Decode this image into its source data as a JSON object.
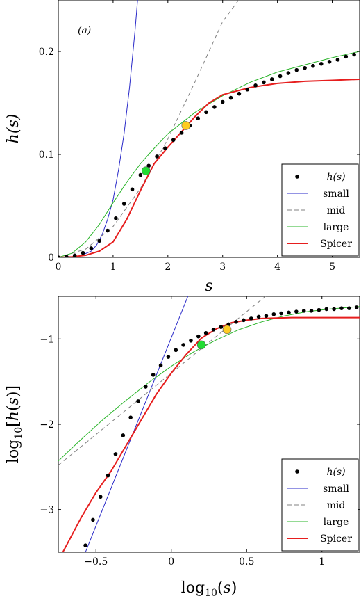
{
  "chart_data": [
    {
      "type": "line",
      "panel_label": "(a)",
      "xlabel": "s",
      "ylabel": "h(s)",
      "xlim": [
        0,
        5.5
      ],
      "ylim": [
        0,
        0.25
      ],
      "xticks": [
        0,
        1,
        2,
        3,
        4,
        5
      ],
      "xtick_labels": [
        "0",
        "1",
        "2",
        "3",
        "4",
        "5"
      ],
      "yticks": [
        0,
        0.1,
        0.2
      ],
      "ytick_labels": [
        "0",
        "0.1",
        "0.2"
      ],
      "grid": false,
      "legend_position": "bottom-right",
      "legend": [
        "h(s)",
        "small",
        "mid",
        "large",
        "Spicer"
      ],
      "series": [
        {
          "name": "h(s)",
          "style": "dots",
          "color": "#000000",
          "x": [
            0.0,
            0.15,
            0.3,
            0.45,
            0.6,
            0.75,
            0.9,
            1.05,
            1.2,
            1.35,
            1.5,
            1.65,
            1.8,
            1.95,
            2.1,
            2.25,
            2.4,
            2.55,
            2.7,
            2.85,
            3.0,
            3.15,
            3.3,
            3.45,
            3.6,
            3.75,
            3.9,
            4.05,
            4.2,
            4.35,
            4.5,
            4.65,
            4.8,
            4.95,
            5.1,
            5.25,
            5.4
          ],
          "y": [
            0.0,
            0.0005,
            0.0018,
            0.0043,
            0.0088,
            0.016,
            0.026,
            0.038,
            0.052,
            0.066,
            0.08,
            0.089,
            0.098,
            0.106,
            0.114,
            0.121,
            0.128,
            0.135,
            0.141,
            0.146,
            0.151,
            0.155,
            0.159,
            0.163,
            0.167,
            0.17,
            0.173,
            0.176,
            0.179,
            0.182,
            0.184,
            0.186,
            0.188,
            0.19,
            0.192,
            0.195,
            0.197
          ]
        },
        {
          "name": "small",
          "style": "solid",
          "color": "#2828c8",
          "x": [
            0.0,
            0.2,
            0.4,
            0.6,
            0.7,
            0.8,
            0.9,
            1.0,
            1.1,
            1.2,
            1.3,
            1.4,
            1.45
          ],
          "y": [
            0.0,
            0.0002,
            0.0015,
            0.006,
            0.012,
            0.022,
            0.037,
            0.056,
            0.085,
            0.12,
            0.165,
            0.22,
            0.252
          ]
        },
        {
          "name": "mid",
          "style": "dashed",
          "color": "#808080",
          "x": [
            0.0,
            0.5,
            1.0,
            1.5,
            2.0,
            2.5,
            3.0,
            3.32
          ],
          "y": [
            0.0,
            0.008,
            0.03,
            0.067,
            0.115,
            0.171,
            0.229,
            0.252
          ]
        },
        {
          "name": "large",
          "style": "solid",
          "color": "#28b428",
          "x": [
            0.0,
            0.25,
            0.5,
            0.75,
            1.0,
            1.25,
            1.5,
            1.75,
            2.0,
            2.5,
            3.0,
            3.5,
            4.0,
            4.5,
            5.0,
            5.5
          ],
          "y": [
            0.0,
            0.004,
            0.015,
            0.032,
            0.053,
            0.073,
            0.091,
            0.106,
            0.12,
            0.141,
            0.157,
            0.17,
            0.18,
            0.187,
            0.194,
            0.2
          ]
        },
        {
          "name": "Spicer",
          "style": "solid-thick",
          "color": "#e61e1e",
          "x": [
            0.0,
            0.25,
            0.5,
            0.75,
            1.0,
            1.25,
            1.5,
            1.75,
            2.0,
            2.25,
            2.5,
            2.75,
            3.0,
            3.5,
            4.0,
            4.5,
            5.0,
            5.5
          ],
          "y": [
            0.0,
            0.0005,
            0.002,
            0.006,
            0.015,
            0.037,
            0.065,
            0.091,
            0.107,
            0.122,
            0.137,
            0.15,
            0.158,
            0.165,
            0.169,
            0.171,
            0.172,
            0.173
          ]
        }
      ],
      "markers": [
        {
          "color": "#22dd33",
          "x": 1.6,
          "y": 0.084
        },
        {
          "color": "#ffcc22",
          "x": 2.33,
          "y": 0.128
        }
      ]
    },
    {
      "type": "line",
      "xlabel": "log10(s)",
      "ylabel": "log10[h(s)]",
      "xlim": [
        -0.75,
        1.25
      ],
      "ylim": [
        -3.5,
        -0.5
      ],
      "xticks": [
        -0.5,
        0,
        0.5,
        1
      ],
      "xtick_labels": [
        "−0.5",
        "0",
        "0.5",
        "1"
      ],
      "yticks": [
        -3,
        -2,
        -1
      ],
      "ytick_labels": [
        "−3",
        "−2",
        "−1"
      ],
      "grid": false,
      "legend_position": "bottom-right",
      "legend": [
        "h(s)",
        "small",
        "mid",
        "large",
        "Spicer"
      ],
      "series": [
        {
          "name": "h(s)",
          "style": "dots",
          "color": "#000000",
          "x": [
            -0.57,
            -0.52,
            -0.47,
            -0.42,
            -0.37,
            -0.32,
            -0.27,
            -0.22,
            -0.17,
            -0.12,
            -0.07,
            -0.02,
            0.03,
            0.08,
            0.13,
            0.18,
            0.23,
            0.28,
            0.33,
            0.38,
            0.43,
            0.48,
            0.53,
            0.58,
            0.63,
            0.68,
            0.73,
            0.78,
            0.83,
            0.88,
            0.93,
            0.98,
            1.03,
            1.08,
            1.13,
            1.18,
            1.23
          ],
          "y": [
            -3.42,
            -3.12,
            -2.85,
            -2.6,
            -2.35,
            -2.13,
            -1.92,
            -1.73,
            -1.56,
            -1.42,
            -1.31,
            -1.21,
            -1.13,
            -1.07,
            -1.02,
            -0.97,
            -0.93,
            -0.89,
            -0.86,
            -0.83,
            -0.8,
            -0.78,
            -0.76,
            -0.74,
            -0.73,
            -0.71,
            -0.7,
            -0.69,
            -0.68,
            -0.67,
            -0.67,
            -0.66,
            -0.65,
            -0.65,
            -0.64,
            -0.64,
            -0.63
          ]
        },
        {
          "name": "small",
          "style": "solid",
          "color": "#2828c8",
          "x": [
            -0.57,
            0.11
          ],
          "y": [
            -3.5,
            -0.5
          ]
        },
        {
          "name": "mid",
          "style": "dashed",
          "color": "#808080",
          "x": [
            -0.75,
            -0.5,
            -0.25,
            0.0,
            0.25,
            0.5,
            0.625
          ],
          "y": [
            -2.48,
            -2.12,
            -1.76,
            -1.4,
            -1.04,
            -0.68,
            -0.5
          ]
        },
        {
          "name": "large",
          "style": "solid",
          "color": "#28b428",
          "x": [
            -0.75,
            -0.6,
            -0.45,
            -0.3,
            -0.15,
            0.0,
            0.15,
            0.3,
            0.45,
            0.6,
            0.75,
            0.9,
            1.05,
            1.25
          ],
          "y": [
            -2.43,
            -2.18,
            -1.94,
            -1.72,
            -1.51,
            -1.32,
            -1.15,
            -1.01,
            -0.89,
            -0.8,
            -0.73,
            -0.68,
            -0.65,
            -0.62
          ]
        },
        {
          "name": "Spicer",
          "style": "solid-thick",
          "color": "#e61e1e",
          "x": [
            -0.72,
            -0.6,
            -0.5,
            -0.4,
            -0.3,
            -0.2,
            -0.1,
            0.0,
            0.1,
            0.2,
            0.3,
            0.4,
            0.5,
            0.6,
            0.7,
            0.8,
            0.9,
            1.0,
            1.1,
            1.25
          ],
          "y": [
            -3.5,
            -3.1,
            -2.8,
            -2.55,
            -2.25,
            -1.95,
            -1.65,
            -1.4,
            -1.18,
            -0.99,
            -0.88,
            -0.81,
            -0.78,
            -0.76,
            -0.755,
            -0.75,
            -0.75,
            -0.75,
            -0.75,
            -0.75
          ]
        }
      ],
      "markers": [
        {
          "color": "#22dd33",
          "x": 0.2,
          "y": -1.07
        },
        {
          "color": "#ffcc22",
          "x": 0.37,
          "y": -0.89
        }
      ]
    }
  ]
}
